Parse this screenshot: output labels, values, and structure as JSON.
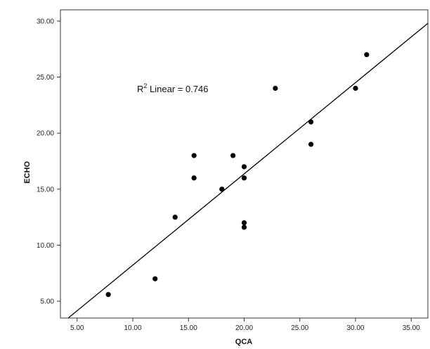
{
  "chart_data": {
    "type": "scatter",
    "xlabel": "QCA",
    "ylabel": "ECHO",
    "xlim": [
      3.5,
      36.5
    ],
    "ylim": [
      3.5,
      31.0
    ],
    "x_ticks": [
      "5.00",
      "10.00",
      "15.00",
      "20.00",
      "25.00",
      "30.00",
      "35.00"
    ],
    "y_ticks": [
      "5.00",
      "10.00",
      "15.00",
      "20.00",
      "25.00",
      "30.00"
    ],
    "x_tick_values": [
      5,
      10,
      15,
      20,
      25,
      30,
      35
    ],
    "y_tick_values": [
      5,
      10,
      15,
      20,
      25,
      30
    ],
    "points": [
      {
        "x": 7.8,
        "y": 5.6
      },
      {
        "x": 12.0,
        "y": 7.0
      },
      {
        "x": 13.8,
        "y": 12.5
      },
      {
        "x": 15.5,
        "y": 16.0
      },
      {
        "x": 15.5,
        "y": 18.0
      },
      {
        "x": 18.0,
        "y": 15.0
      },
      {
        "x": 19.0,
        "y": 18.0
      },
      {
        "x": 20.0,
        "y": 17.0
      },
      {
        "x": 20.0,
        "y": 16.0
      },
      {
        "x": 20.0,
        "y": 12.0
      },
      {
        "x": 20.0,
        "y": 11.6
      },
      {
        "x": 22.8,
        "y": 24.0
      },
      {
        "x": 26.0,
        "y": 21.0
      },
      {
        "x": 26.0,
        "y": 19.0
      },
      {
        "x": 30.0,
        "y": 24.0
      },
      {
        "x": 31.0,
        "y": 27.0
      }
    ],
    "fit_line": {
      "x": [
        4.2,
        36.5
      ],
      "y": [
        3.5,
        29.8
      ]
    },
    "annotation": {
      "prefix": "R",
      "sup": "2",
      "text": " Linear = 0.746"
    },
    "grid": false,
    "legend": "none",
    "point_color": "#000000",
    "line_color": "#000000"
  }
}
